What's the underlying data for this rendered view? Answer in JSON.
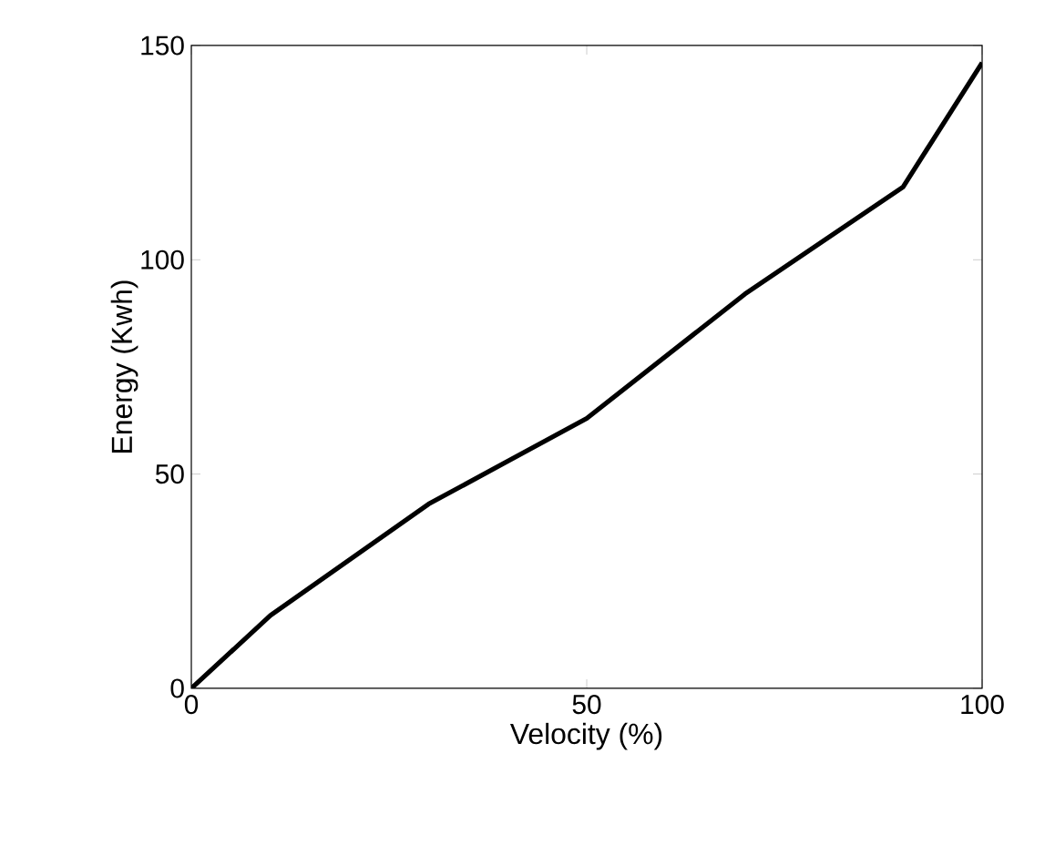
{
  "chart_data": {
    "type": "line",
    "xlabel": "Velocity (%)",
    "ylabel": "Energy (Kwh)",
    "x": [
      0,
      10,
      30,
      50,
      70,
      90,
      100
    ],
    "series": [
      {
        "color": "#000000",
        "values": [
          0,
          17,
          43,
          63,
          92,
          117,
          146
        ]
      }
    ],
    "xlim": [
      0,
      100
    ],
    "ylim": [
      0,
      150
    ],
    "xticks": [
      0,
      50,
      100
    ],
    "yticks": [
      0,
      50,
      100,
      150
    ],
    "grid": false,
    "marker": "none",
    "line_style": "solid"
  }
}
